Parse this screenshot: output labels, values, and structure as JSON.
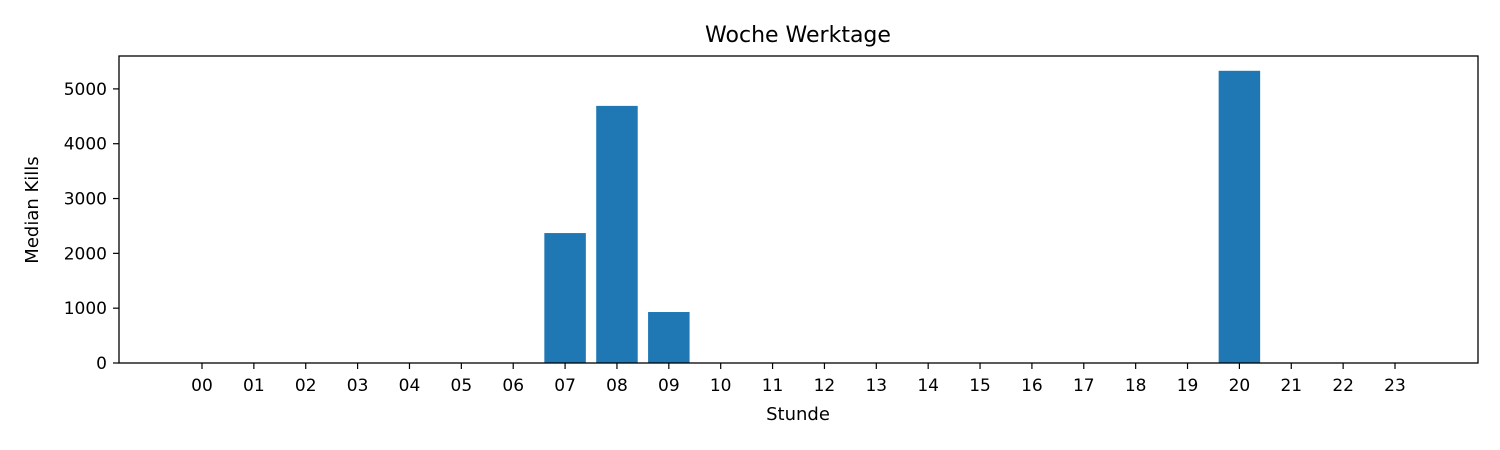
{
  "chart_data": {
    "type": "bar",
    "title": "Woche Werktage",
    "xlabel": "Stunde",
    "ylabel": "Median Kills",
    "categories": [
      "00",
      "01",
      "02",
      "03",
      "04",
      "05",
      "06",
      "07",
      "08",
      "09",
      "10",
      "11",
      "12",
      "13",
      "14",
      "15",
      "16",
      "17",
      "18",
      "19",
      "20",
      "21",
      "22",
      "23"
    ],
    "values": [
      0,
      0,
      0,
      0,
      0,
      0,
      0,
      2370,
      4690,
      930,
      0,
      0,
      0,
      0,
      0,
      0,
      0,
      0,
      0,
      0,
      5330,
      0,
      0,
      0
    ],
    "yticks": [
      "0",
      "1000",
      "2000",
      "3000",
      "4000",
      "5000"
    ],
    "ylim": [
      0,
      5600
    ],
    "grid": false,
    "colors": {
      "bar": "#1f77b4"
    }
  }
}
